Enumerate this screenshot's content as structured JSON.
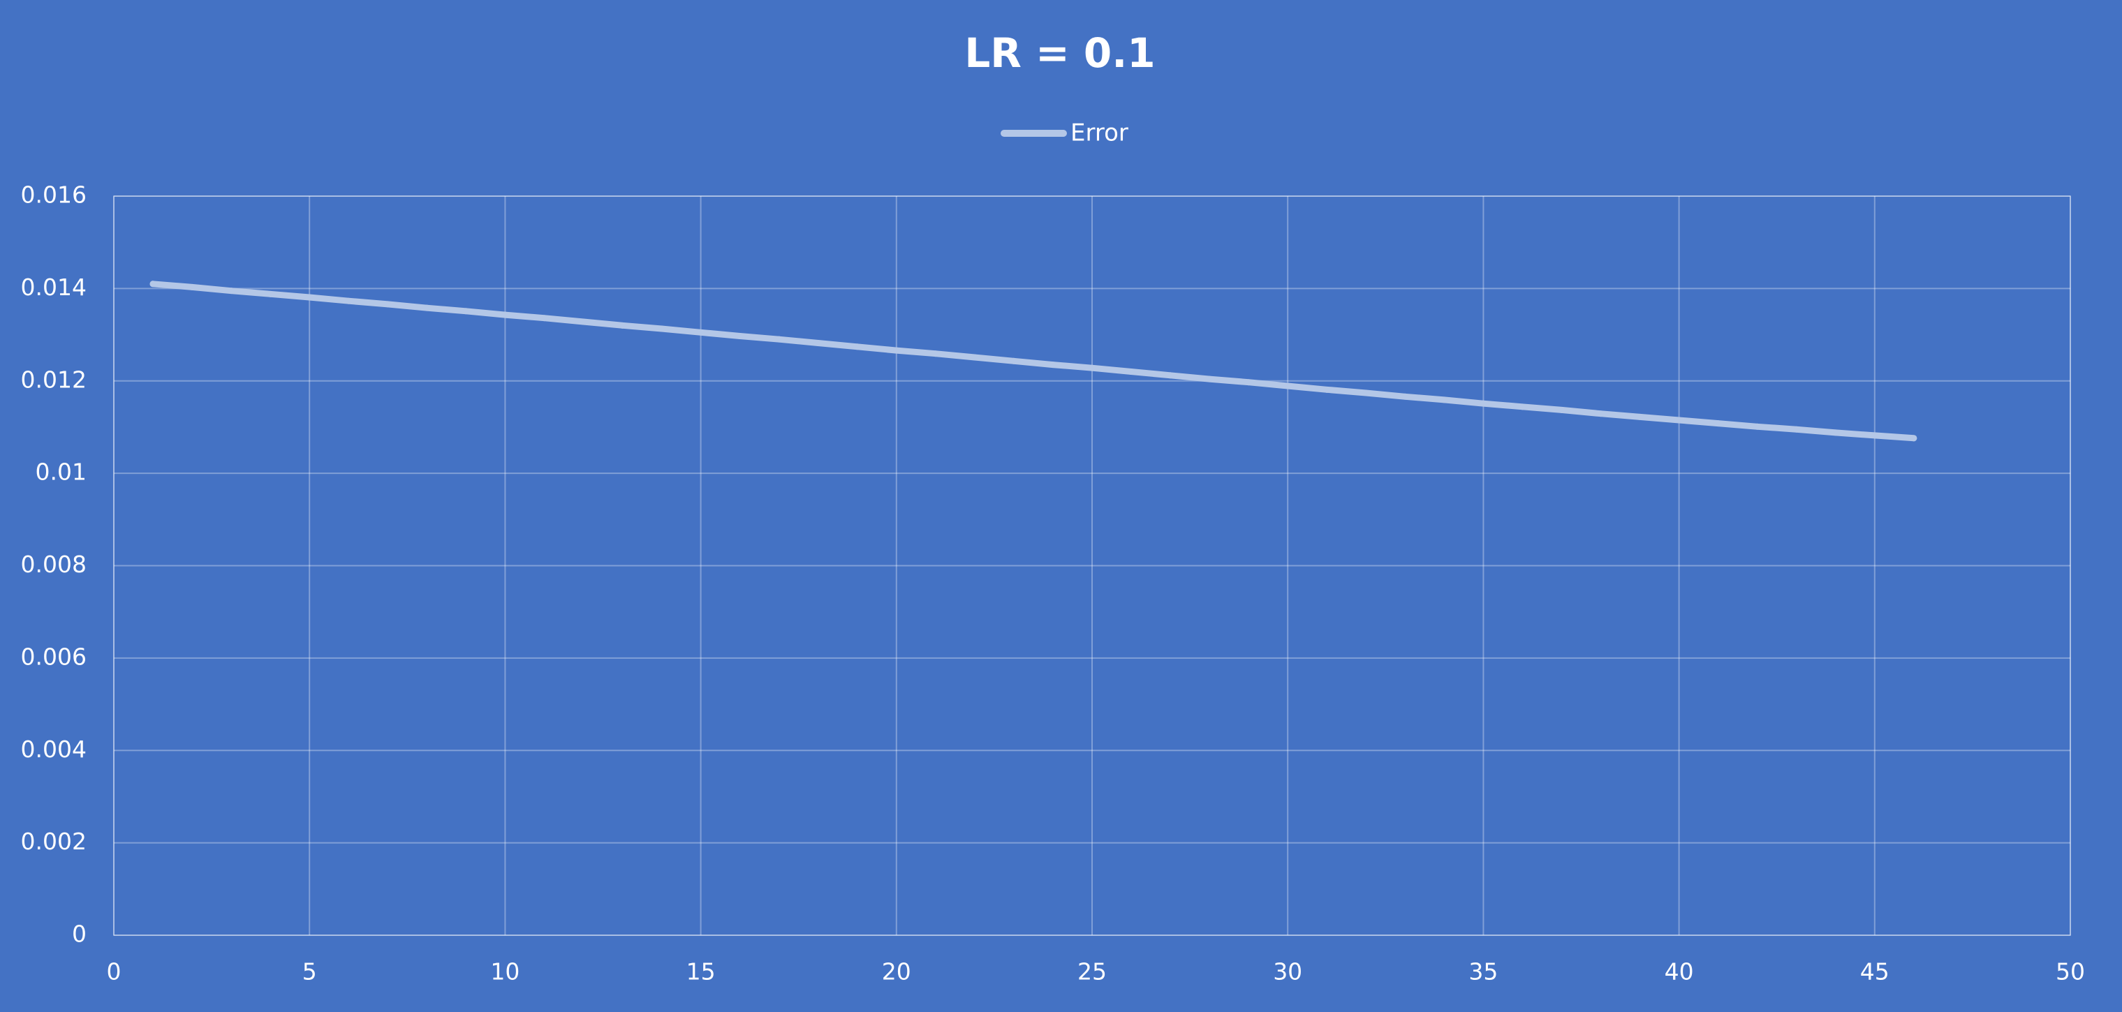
{
  "chart_data": {
    "type": "line",
    "title": "LR = 0.1",
    "xlabel": "",
    "ylabel": "",
    "xlim": [
      0,
      50
    ],
    "ylim": [
      0,
      0.016
    ],
    "x_ticks": [
      0,
      5,
      10,
      15,
      20,
      25,
      30,
      35,
      40,
      45,
      50
    ],
    "y_ticks": [
      0,
      0.002,
      0.004,
      0.006,
      0.008,
      0.01,
      0.012,
      0.014,
      0.016
    ],
    "x_tick_labels": [
      "0",
      "5",
      "10",
      "15",
      "20",
      "25",
      "30",
      "35",
      "40",
      "45",
      "50"
    ],
    "y_tick_labels": [
      "0",
      "0.002",
      "0.004",
      "0.006",
      "0.008",
      "0.01",
      "0.012",
      "0.014",
      "0.016"
    ],
    "grid": true,
    "legend": {
      "position": "top",
      "entries": [
        "Error"
      ]
    },
    "colors": {
      "background": "#4472c4",
      "text": "#ffffff",
      "gridline": "#ffffff",
      "series": "#b4c7e7"
    },
    "series": [
      {
        "name": "Error",
        "x": [
          1,
          2,
          3,
          4,
          5,
          6,
          7,
          8,
          9,
          10,
          11,
          12,
          13,
          14,
          15,
          16,
          17,
          18,
          19,
          20,
          21,
          22,
          23,
          24,
          25,
          26,
          27,
          28,
          29,
          30,
          31,
          32,
          33,
          34,
          35,
          36,
          37,
          38,
          39,
          40,
          41,
          42,
          43,
          44,
          45,
          46
        ],
        "values": [
          0.0141,
          0.01403,
          0.01395,
          0.01388,
          0.01381,
          0.01373,
          0.01366,
          0.01358,
          0.01351,
          0.01343,
          0.01336,
          0.01328,
          0.0132,
          0.01313,
          0.01305,
          0.01297,
          0.0129,
          0.01282,
          0.01274,
          0.01266,
          0.01259,
          0.01251,
          0.01243,
          0.01235,
          0.01228,
          0.0122,
          0.01212,
          0.01204,
          0.01197,
          0.01189,
          0.01181,
          0.01174,
          0.01166,
          0.01159,
          0.01151,
          0.01144,
          0.01137,
          0.01129,
          0.01122,
          0.01115,
          0.01108,
          0.01101,
          0.01095,
          0.01088,
          0.01082,
          0.01076
        ]
      }
    ]
  }
}
